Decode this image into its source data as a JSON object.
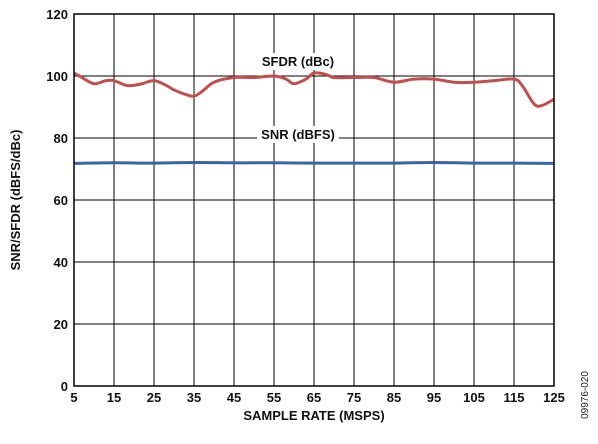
{
  "chart_data": {
    "type": "line",
    "title": "",
    "xlabel": "SAMPLE RATE (MSPS)",
    "ylabel": "SNR/SFDR (dBFS/dBc)",
    "xlim": [
      5,
      125
    ],
    "ylim": [
      0,
      120
    ],
    "xticks": [
      5,
      15,
      25,
      35,
      45,
      55,
      65,
      75,
      85,
      95,
      105,
      115,
      125
    ],
    "yticks": [
      0,
      20,
      40,
      60,
      80,
      100,
      120
    ],
    "grid": true,
    "legend": "inline labels on curves",
    "series": [
      {
        "name": "SFDR (dBc)",
        "color": "#c0504d",
        "x": [
          5,
          7,
          10,
          13,
          15,
          18,
          20,
          22,
          25,
          28,
          30,
          33,
          35,
          37,
          40,
          45,
          50,
          55,
          58,
          60,
          63,
          65,
          68,
          70,
          75,
          80,
          85,
          90,
          95,
          100,
          105,
          110,
          115,
          117,
          120,
          122,
          125
        ],
        "y": [
          101,
          99.5,
          97.5,
          98.5,
          98.5,
          97,
          97,
          97.5,
          98.5,
          97,
          95.5,
          94,
          93.5,
          95,
          98,
          99.5,
          99.5,
          100,
          99,
          97.5,
          99,
          101,
          100.5,
          99.5,
          99.5,
          99.5,
          98,
          99,
          99,
          98,
          98,
          98.5,
          99,
          97,
          91,
          90.5,
          92.5
        ]
      },
      {
        "name": "SNR (dBFS)",
        "color": "#3a64a8",
        "x": [
          5,
          15,
          25,
          35,
          45,
          55,
          65,
          75,
          85,
          95,
          105,
          115,
          125
        ],
        "y": [
          71.8,
          72,
          71.9,
          72.1,
          72,
          72,
          71.9,
          71.9,
          71.9,
          72.1,
          71.9,
          71.9,
          71.8
        ]
      }
    ]
  },
  "figure_id": "09976-020"
}
